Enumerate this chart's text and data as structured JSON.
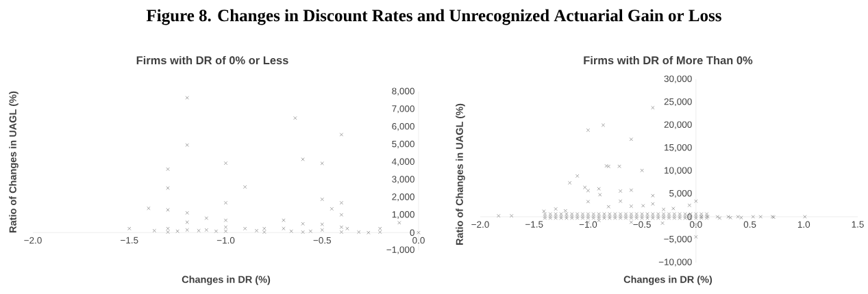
{
  "chart_data": [
    {
      "type": "scatter",
      "title": "Figure 8. Changes in Discount Rates and Unrecognized Actuarial Gain or Loss",
      "subtitle": "Firms with DR of 0% or Less",
      "xlabel": "Changes in DR (%)",
      "ylabel": "Ratio of Changes in UAGL (%)",
      "color": "#999999",
      "marker": "cross",
      "xlim": [
        -2,
        0
      ],
      "ylim": [
        -1000,
        8000
      ],
      "xticks": [
        {
          "value": -2,
          "label": "−2.0"
        },
        {
          "value": -1.5,
          "label": "−1.5"
        },
        {
          "value": -1,
          "label": "−1.0"
        },
        {
          "value": -0.5,
          "label": "−0.5"
        },
        {
          "value": 0,
          "label": "0.0"
        }
      ],
      "yticks": [
        {
          "value": -1000,
          "label": "−1,000"
        },
        0,
        {
          "value": 1000,
          "label": "1,000"
        },
        {
          "value": 2000,
          "label": "2,000"
        },
        {
          "value": 3000,
          "label": "3,000"
        },
        {
          "value": 4000,
          "label": "4,000"
        },
        {
          "value": 5000,
          "label": "5,000"
        },
        {
          "value": 6000,
          "label": "6,000"
        },
        {
          "value": 7000,
          "label": "7,000"
        },
        {
          "value": 8000,
          "label": "8,000"
        }
      ],
      "x": [
        -1.5,
        -1.37,
        -1.4,
        -1.3,
        -1.3,
        -1.3,
        -1.3,
        -1.3,
        -1.25,
        -1.2,
        -1.2,
        -1.2,
        -1.2,
        -1.2,
        -1.14,
        -1.1,
        -1.1,
        -1.05,
        -1.0,
        -1.0,
        -1.0,
        -1.0,
        -1.0,
        -0.9,
        -0.9,
        -0.84,
        -0.8,
        -0.8,
        -0.7,
        -0.7,
        -0.66,
        -0.64,
        -0.6,
        -0.6,
        -0.6,
        -0.56,
        -0.5,
        -0.5,
        -0.5,
        -0.5,
        -0.45,
        -0.4,
        -0.4,
        -0.4,
        -0.4,
        -0.4,
        -0.37,
        -0.31,
        -0.26,
        -0.2,
        -0.2,
        -0.1,
        0.0
      ],
      "values": [
        230,
        110,
        1380,
        3600,
        2530,
        1290,
        230,
        30,
        80,
        7650,
        4970,
        1120,
        590,
        150,
        110,
        820,
        150,
        80,
        3940,
        1690,
        700,
        310,
        80,
        2590,
        230,
        110,
        230,
        30,
        700,
        230,
        80,
        6500,
        4160,
        500,
        30,
        80,
        3930,
        1890,
        470,
        150,
        1350,
        5560,
        1690,
        1010,
        310,
        30,
        230,
        30,
        0,
        230,
        30,
        560,
        0
      ]
    },
    {
      "type": "scatter",
      "subtitle": "Firms with DR of More Than 0%",
      "xlabel": "Changes in DR (%)",
      "ylabel": "Ratio of Changes in UAGL (%)",
      "color": "#999999",
      "marker": "cross",
      "xlim": [
        -2,
        1.5
      ],
      "ylim": [
        -10000,
        30000
      ],
      "xticks": [
        {
          "value": -2,
          "label": "−2.0"
        },
        {
          "value": -1.5,
          "label": "−1.5"
        },
        {
          "value": -1,
          "label": "−1.0"
        },
        {
          "value": -0.5,
          "label": "−0.5"
        },
        {
          "value": 0,
          "label": "0.0"
        },
        0.5,
        {
          "value": 1,
          "label": "1.0"
        },
        1.5
      ],
      "yticks": [
        {
          "value": -10000,
          "label": "−10,000"
        },
        {
          "value": -5000,
          "label": "−5,000"
        },
        0,
        {
          "value": 5000,
          "label": "5,000"
        },
        {
          "value": 10000,
          "label": "10,000"
        },
        {
          "value": 15000,
          "label": "15,000"
        },
        {
          "value": 20000,
          "label": "20,000"
        },
        {
          "value": 25000,
          "label": "25,000"
        },
        {
          "value": 30000,
          "label": "30,000"
        }
      ],
      "x": [
        -1.83,
        -1.71,
        -0.4,
        -1.0,
        -0.86,
        -0.6,
        -0.83,
        -0.81,
        -0.71,
        -0.5,
        -1.1,
        -1.17,
        -1.03,
        -1.0,
        -0.9,
        -0.89,
        -0.7,
        -0.6,
        -0.4,
        -0.4,
        -0.7,
        0.0,
        -0.06,
        -1.0,
        -1.41,
        -1.3,
        -1.21,
        -0.21,
        -0.3,
        -0.49,
        -0.6,
        -0.81,
        -1.0,
        -0.9,
        -0.6,
        -0.31,
        0.0,
        0.0,
        0.2,
        0.3,
        0.39,
        0.53,
        0.6,
        0.71,
        1.01,
        0.11,
        0.05,
        0.22,
        0.32,
        0.42,
        0.72,
        -1.4,
        -1.35,
        -1.3,
        -1.25,
        -1.2,
        -1.15,
        -1.1,
        -1.05,
        -1.0,
        -0.95,
        -0.9,
        -0.85,
        -0.8,
        -0.75,
        -0.7,
        -0.65,
        -0.6,
        -0.55,
        -0.5,
        -0.45,
        -0.4,
        -0.35,
        -0.3,
        -0.25,
        -0.2,
        -0.15,
        -0.1,
        -0.05,
        0.0,
        0.05,
        0.1,
        -1.4,
        -1.35,
        -1.3,
        -1.25,
        -1.2,
        -1.15,
        -1.1,
        -1.05,
        -1.0,
        -0.95,
        -0.9,
        -0.85,
        -0.8,
        -0.75,
        -0.7,
        -0.65,
        -0.6,
        -0.55,
        -0.5,
        -0.45,
        -0.4,
        -0.35,
        -0.3,
        -0.25,
        -0.2,
        -0.15,
        -0.1,
        -0.05,
        0.0,
        0.05,
        0.1,
        -1.4,
        -1.35,
        -1.3,
        -1.25,
        -1.2,
        -1.15,
        -1.1,
        -1.05,
        -1.0,
        -0.95,
        -0.9,
        -0.85,
        -0.8,
        -0.75,
        -0.7,
        -0.65,
        -0.6,
        -0.55,
        -0.5,
        -0.45,
        -0.4,
        -0.35,
        -0.3,
        -0.25,
        -0.2,
        -0.15,
        -0.1,
        -0.05,
        0.0,
        0.05,
        0.1
      ],
      "values": [
        200,
        200,
        23800,
        18900,
        20000,
        16900,
        11100,
        11000,
        11000,
        10100,
        8900,
        7400,
        6400,
        5700,
        6100,
        4800,
        5600,
        5800,
        4600,
        2800,
        3400,
        3400,
        2500,
        3300,
        1200,
        1700,
        1300,
        1800,
        1600,
        2400,
        2300,
        2200,
        -1200,
        -800,
        -1200,
        -1400,
        -4400,
        -1700,
        0,
        0,
        0,
        0,
        0,
        0,
        0,
        0,
        0,
        -300,
        -200,
        -200,
        -100,
        600,
        600,
        600,
        600,
        600,
        600,
        600,
        600,
        600,
        600,
        600,
        600,
        600,
        600,
        600,
        600,
        600,
        600,
        600,
        600,
        600,
        600,
        600,
        600,
        600,
        600,
        600,
        600,
        600,
        600,
        600,
        100,
        100,
        100,
        100,
        100,
        100,
        100,
        100,
        100,
        100,
        100,
        100,
        100,
        100,
        100,
        100,
        100,
        100,
        100,
        100,
        100,
        100,
        100,
        100,
        100,
        100,
        100,
        100,
        100,
        100,
        100,
        -300,
        -300,
        -300,
        -300,
        -300,
        -300,
        -300,
        -300,
        -300,
        -300,
        -300,
        -300,
        -300,
        -300,
        -300,
        -300,
        -300,
        -300,
        -300,
        -300,
        -300,
        -300,
        -300,
        -300,
        -300,
        -300,
        -300,
        -300,
        -300,
        -300,
        -300
      ]
    }
  ]
}
